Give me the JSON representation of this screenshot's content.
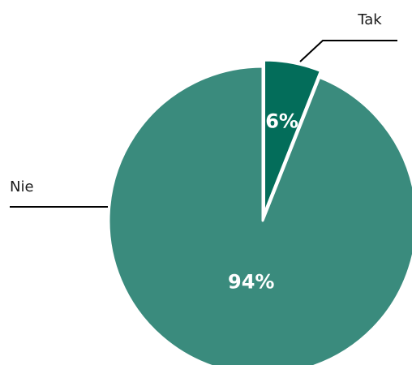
{
  "chart_data": {
    "type": "pie",
    "title": "",
    "start_angle_deg": 0,
    "direction": "clockwise",
    "legend": "none",
    "slices": [
      {
        "label": "Tak",
        "value": 6,
        "display": "6%",
        "color": "#036d5a"
      },
      {
        "label": "Nie",
        "value": 94,
        "display": "94%",
        "color": "#3a8b7d"
      }
    ]
  }
}
